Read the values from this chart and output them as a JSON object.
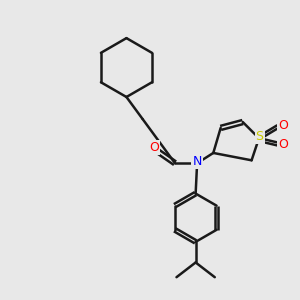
{
  "background_color": "#e8e8e8",
  "bond_color": "#1a1a1a",
  "N_color": "#0000ff",
  "O_color": "#ff0000",
  "S_color": "#cccc00",
  "line_width": 1.8,
  "figsize": [
    3.0,
    3.0
  ],
  "dpi": 100,
  "xlim": [
    0,
    10
  ],
  "ylim": [
    0,
    10
  ]
}
